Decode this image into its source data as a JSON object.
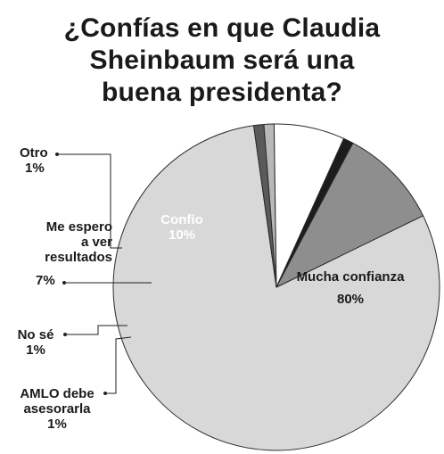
{
  "title_lines": [
    "¿Confías en que Claudia",
    "Sheinbaum será una",
    "buena presidenta?"
  ],
  "chart_data": {
    "type": "pie",
    "title": "¿Confías en que Claudia Sheinbaum será una buena presidenta?",
    "legend": "none",
    "slices": [
      {
        "label": "Mucha confianza",
        "value": 80,
        "value_label": "80%",
        "color": "#d8d8d8"
      },
      {
        "label": "AMLO debe asesorarla",
        "value": 1,
        "value_label": "1%",
        "color": "#5a5a5a"
      },
      {
        "label": "No sé",
        "value": 1,
        "value_label": "1%",
        "color": "#b8b8b8"
      },
      {
        "label": "Me espero a ver resultados",
        "value": 7,
        "value_label": "7%",
        "color": "#ffffff"
      },
      {
        "label": "Otro",
        "value": 1,
        "value_label": "1%",
        "color": "#1c1c1c"
      },
      {
        "label": "Confío",
        "value": 10,
        "value_label": "10%",
        "color": "#8e8e8e"
      }
    ]
  },
  "labels": {
    "mucha_name": "Mucha confianza",
    "mucha_value": "80%",
    "confio_name": "Confío",
    "confio_value": "10%",
    "otro_name": "Otro",
    "otro_value": "1%",
    "espero_line1": "Me espero",
    "espero_line2": "a ver",
    "espero_line3": "resultados",
    "espero_value": "7%",
    "nose_name": "No sé",
    "nose_value": "1%",
    "amlo_line1": "AMLO debe",
    "amlo_line2": "asesorarla",
    "amlo_value": "1%"
  }
}
